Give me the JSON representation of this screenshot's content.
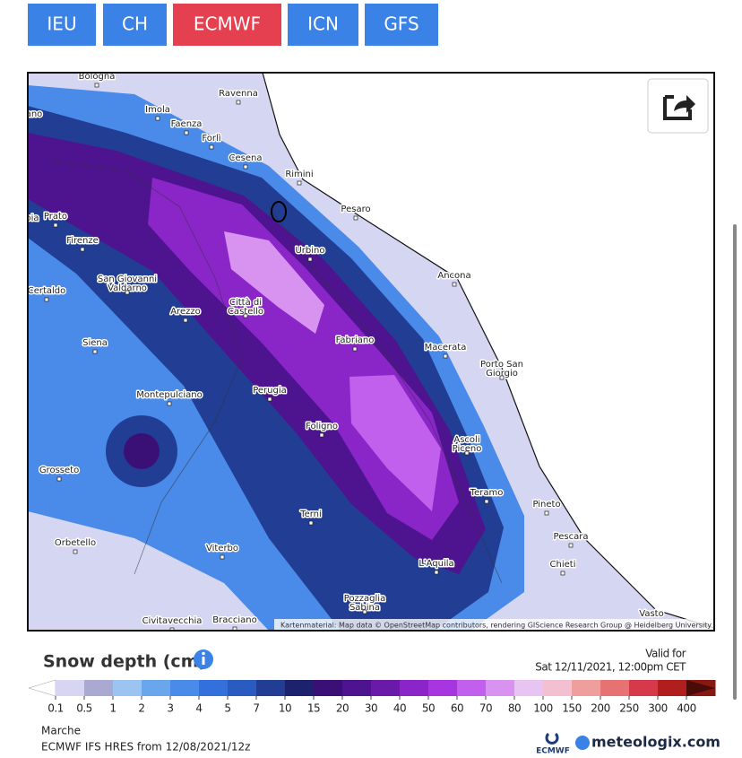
{
  "tabs": [
    {
      "label": "IEU",
      "active": false
    },
    {
      "label": "CH",
      "active": false
    },
    {
      "label": "ECMWF",
      "active": true
    },
    {
      "label": "ICN",
      "active": false
    },
    {
      "label": "GFS",
      "active": false
    }
  ],
  "map": {
    "cities": [
      "Bologna",
      "Ravenna",
      "Imola",
      "Faenza",
      "Forlì",
      "Cesena",
      "Rimini",
      "Pesaro",
      "Prato",
      "Firenze",
      "Urbino",
      "Ancona",
      "San Giovanni Valdarno",
      "Certaldo",
      "Città di Castello",
      "Arezzo",
      "Fabriano",
      "Macerata",
      "Siena",
      "Porto San Giorgio",
      "Montepulciano",
      "Perugia",
      "Foligno",
      "Ascoli Piceno",
      "Grosseto",
      "Teramo",
      "Pineto",
      "Terni",
      "Pescara",
      "Orbetello",
      "Viterbo",
      "L'Aquila",
      "Chieti",
      "Pozzaglia Sabina",
      "Vasto",
      "Civitavecchia",
      "Bracciano",
      "ano",
      "oia"
    ],
    "attribution": "Kartenmaterial: Map data © OpenStreetMap contributors, rendering GIScience Research Group @ Heidelberg University"
  },
  "legend": {
    "title": "Snow depth (cm)",
    "valid_label": "Valid for",
    "valid_time": "Sat 12/11/2021, 12:00pm CET",
    "labels": [
      "0.1",
      "0.5",
      "1",
      "2",
      "3",
      "4",
      "5",
      "7",
      "10",
      "15",
      "20",
      "30",
      "40",
      "50",
      "60",
      "70",
      "80",
      "100",
      "150",
      "200",
      "250",
      "300",
      "400"
    ],
    "colors": [
      "#d6d6f2",
      "#a9a9d2",
      "#9cc4f0",
      "#6aa6ec",
      "#4a8ae8",
      "#3370dc",
      "#2a5bc0",
      "#213e94",
      "#1c226c",
      "#3a0f76",
      "#4e1490",
      "#6a1aa8",
      "#8a25c8",
      "#a736e0",
      "#c060ec",
      "#d892f0",
      "#e8c4f2",
      "#f2c0d0",
      "#ef9e9e",
      "#e67272",
      "#d63a4a",
      "#b01e1e",
      "#8a1812"
    ],
    "under_color": "#ffffff",
    "over_color": "#4a0c08"
  },
  "footer": {
    "region": "Marche",
    "model_run": "ECMWF IFS HRES from 12/08/2021/12z",
    "ecmwf_logo": "ECMWF",
    "brand": "meteologix.com"
  }
}
